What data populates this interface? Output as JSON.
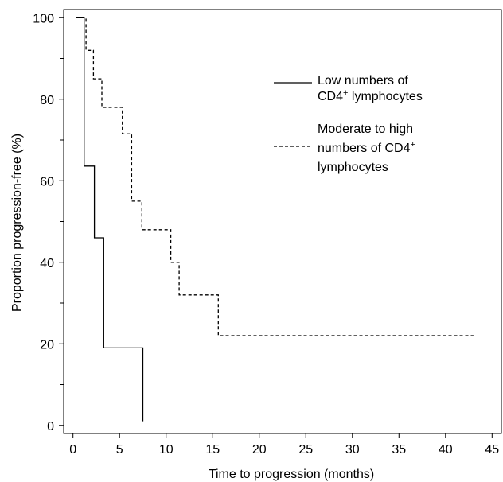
{
  "chart_data": {
    "type": "line",
    "title": "",
    "xlabel": "Time to progression (months)",
    "ylabel": "Proportion progression-free (%)",
    "xlim": [
      -1,
      46
    ],
    "ylim": [
      -2,
      102
    ],
    "x_ticks": [
      0,
      5,
      10,
      15,
      20,
      25,
      30,
      35,
      40,
      45
    ],
    "x_tick_labels": [
      "0",
      "5",
      "10",
      "15",
      "20",
      "25",
      "30",
      "35",
      "40",
      "45"
    ],
    "y_ticks": [
      0,
      20,
      40,
      60,
      80,
      100
    ],
    "y_tick_labels": [
      "0",
      "20",
      "40",
      "60",
      "80",
      "100"
    ],
    "y_minor_ticks": [
      10,
      30,
      50,
      70,
      90
    ],
    "grid": false,
    "legend_position": "top-right",
    "series": [
      {
        "name_lines": [
          "Low numbers of",
          "CD4",
          " lymphocytes"
        ],
        "name_sup": "+",
        "style": "solid",
        "step_points": [
          [
            0.3,
            100
          ],
          [
            1.2,
            100
          ],
          [
            1.2,
            63.6
          ],
          [
            2.3,
            63.6
          ],
          [
            2.3,
            46
          ],
          [
            3.3,
            46
          ],
          [
            3.3,
            19
          ],
          [
            7.5,
            19
          ],
          [
            7.5,
            1
          ]
        ]
      },
      {
        "name_lines": [
          "Moderate to high",
          "numbers of CD4",
          "lymphocytes"
        ],
        "name_sup": "+",
        "style": "dashed",
        "step_points": [
          [
            0.3,
            100
          ],
          [
            1.4,
            100
          ],
          [
            1.4,
            92
          ],
          [
            2.2,
            92
          ],
          [
            2.2,
            85
          ],
          [
            3.1,
            85
          ],
          [
            3.1,
            78
          ],
          [
            5.3,
            78
          ],
          [
            5.3,
            71.5
          ],
          [
            6.3,
            71.5
          ],
          [
            6.3,
            55
          ],
          [
            7.4,
            55
          ],
          [
            7.4,
            48
          ],
          [
            10.5,
            48
          ],
          [
            10.5,
            40
          ],
          [
            11.4,
            40
          ],
          [
            11.4,
            32
          ],
          [
            15.6,
            32
          ],
          [
            15.6,
            22
          ],
          [
            43,
            22
          ]
        ]
      }
    ]
  }
}
